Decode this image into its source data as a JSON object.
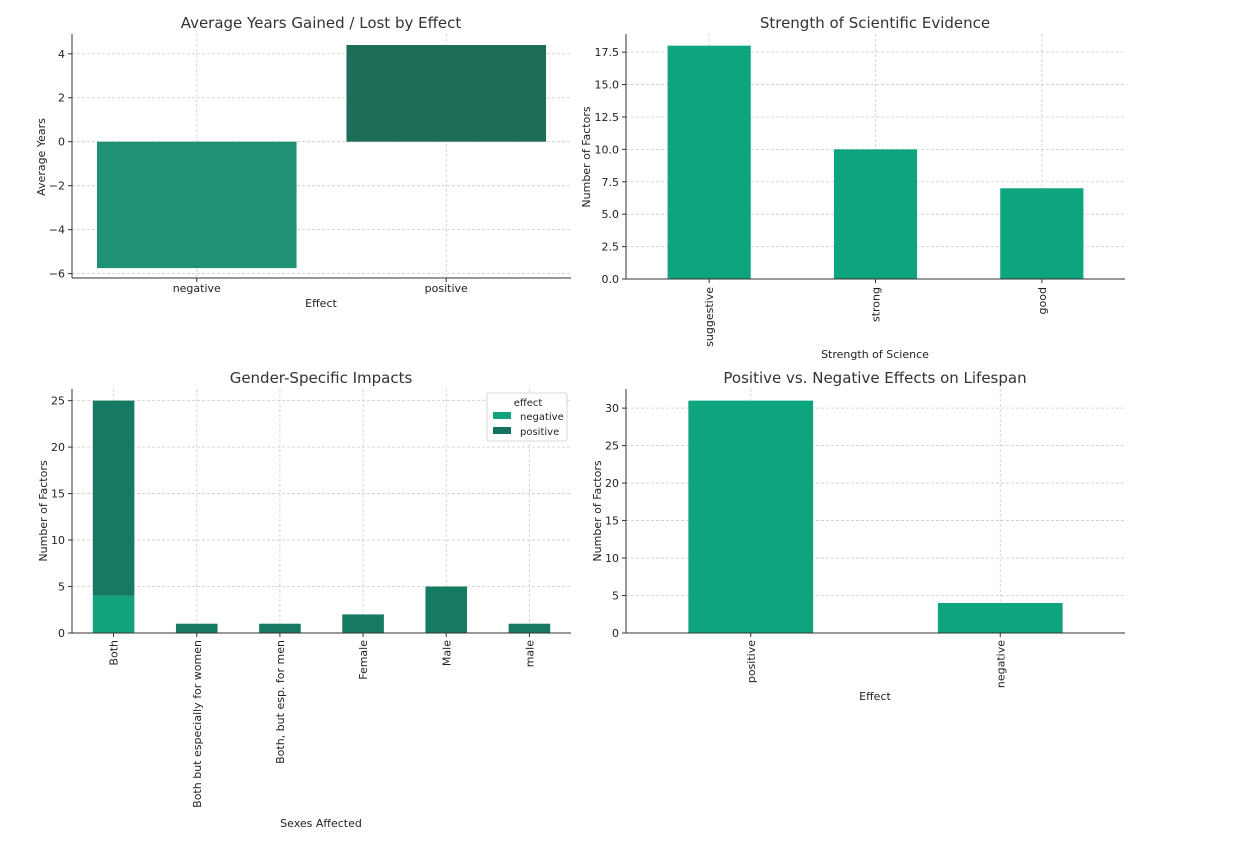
{
  "colors": {
    "avg_negative": "#209273",
    "avg_positive": "#1e6d59",
    "teal": "#0ea47e",
    "dark": "#157a61",
    "legend_negative": "#12a37d",
    "legend_positive": "#137360"
  },
  "chart_data": [
    {
      "id": "avg-years",
      "type": "bar",
      "title": "Average Years Gained / Lost by Effect",
      "xlabel": "Effect",
      "ylabel": "Average Years",
      "categories": [
        "negative",
        "positive"
      ],
      "values": [
        -5.75,
        4.4
      ],
      "ylim": [
        -6.2,
        4.9
      ],
      "yticks": [
        -6,
        -4,
        -2,
        0,
        2,
        4
      ],
      "ytick_labels": [
        "−6",
        "−4",
        "−2",
        "0",
        "2",
        "4"
      ],
      "grid": true
    },
    {
      "id": "strength",
      "type": "bar",
      "title": "Strength of Scientific Evidence",
      "xlabel": "Strength of Science",
      "ylabel": "Number of Factors",
      "categories": [
        "suggestive",
        "strong",
        "good"
      ],
      "values": [
        18,
        10,
        7
      ],
      "ylim": [
        0,
        18.9
      ],
      "yticks": [
        0,
        2.5,
        5,
        7.5,
        10,
        12.5,
        15,
        17.5
      ],
      "ytick_labels": [
        "0.0",
        "2.5",
        "5.0",
        "7.5",
        "10.0",
        "12.5",
        "15.0",
        "17.5"
      ],
      "grid": true
    },
    {
      "id": "gender",
      "type": "bar",
      "stacked": true,
      "title": "Gender-Specific Impacts",
      "xlabel": "Sexes Affected",
      "ylabel": "Number of Factors",
      "categories": [
        "Both",
        "Both but especially for women",
        "Both, but esp. for men",
        "Female",
        "Male",
        "male"
      ],
      "series": [
        {
          "name": "negative",
          "values": [
            4,
            0,
            0,
            0,
            0,
            0
          ]
        },
        {
          "name": "positive",
          "values": [
            21,
            1,
            1,
            2,
            5,
            1
          ]
        }
      ],
      "legend_title": "effect",
      "legend_position": "top-right",
      "ylim": [
        0,
        26.25
      ],
      "yticks": [
        0,
        5,
        10,
        15,
        20,
        25
      ],
      "ytick_labels": [
        "0",
        "5",
        "10",
        "15",
        "20",
        "25"
      ],
      "grid": true
    },
    {
      "id": "pos-neg",
      "type": "bar",
      "title": "Positive vs. Negative Effects on Lifespan",
      "xlabel": "Effect",
      "ylabel": "Number of Factors",
      "categories": [
        "positive",
        "negative"
      ],
      "values": [
        31,
        4
      ],
      "ylim": [
        0,
        32.55
      ],
      "yticks": [
        0,
        5,
        10,
        15,
        20,
        25,
        30
      ],
      "ytick_labels": [
        "0",
        "5",
        "10",
        "15",
        "20",
        "25",
        "30"
      ],
      "grid": true
    }
  ]
}
